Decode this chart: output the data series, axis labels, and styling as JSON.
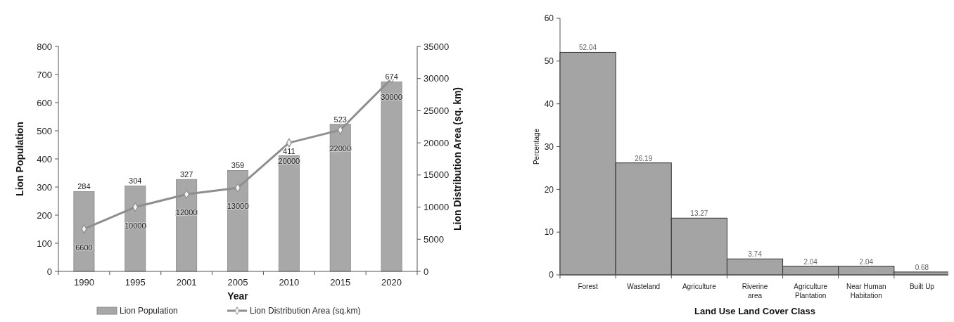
{
  "chart_data": [
    {
      "type": "bar",
      "categories": [
        "1990",
        "1995",
        "2001",
        "2005",
        "2010",
        "2015",
        "2020"
      ],
      "xlabel": "Year",
      "ylabel": "Lion Population",
      "y2label": "Lion Distribution Area (sq. km)",
      "ylim": [
        0,
        800
      ],
      "yticks": [
        0,
        100,
        200,
        300,
        400,
        500,
        600,
        700,
        800
      ],
      "y2lim": [
        0,
        35000
      ],
      "y2ticks": [
        0,
        5000,
        10000,
        15000,
        20000,
        25000,
        30000,
        35000
      ],
      "legend": "bottom",
      "marker": "diamond",
      "data_labels": true,
      "series": [
        {
          "name": "Lion Population",
          "type": "bar",
          "color": "#a8a8a8",
          "values": [
            284,
            304,
            327,
            359,
            411,
            523,
            674
          ]
        },
        {
          "name": "Lion Distribution Area (sq.km)",
          "type": "line",
          "axis": "y2",
          "color": "#8e8e8e",
          "values": [
            6600,
            10000,
            12000,
            13000,
            20000,
            22000,
            30000
          ]
        }
      ]
    },
    {
      "type": "bar",
      "categories": [
        "Forest",
        "Wasteland",
        "Agriculture",
        "Riverine area",
        "Agriculture Plantation",
        "Near Human Habitation",
        "Built Up"
      ],
      "xlabel": "Land Use Land Cover Class",
      "ylabel": "Percentage",
      "ylim": [
        0,
        60
      ],
      "yticks": [
        0,
        10,
        20,
        30,
        40,
        50,
        60
      ],
      "data_labels": true,
      "color": "#a4a4a4",
      "values": [
        52.04,
        26.19,
        13.27,
        3.74,
        2.04,
        2.04,
        0.68
      ]
    }
  ]
}
